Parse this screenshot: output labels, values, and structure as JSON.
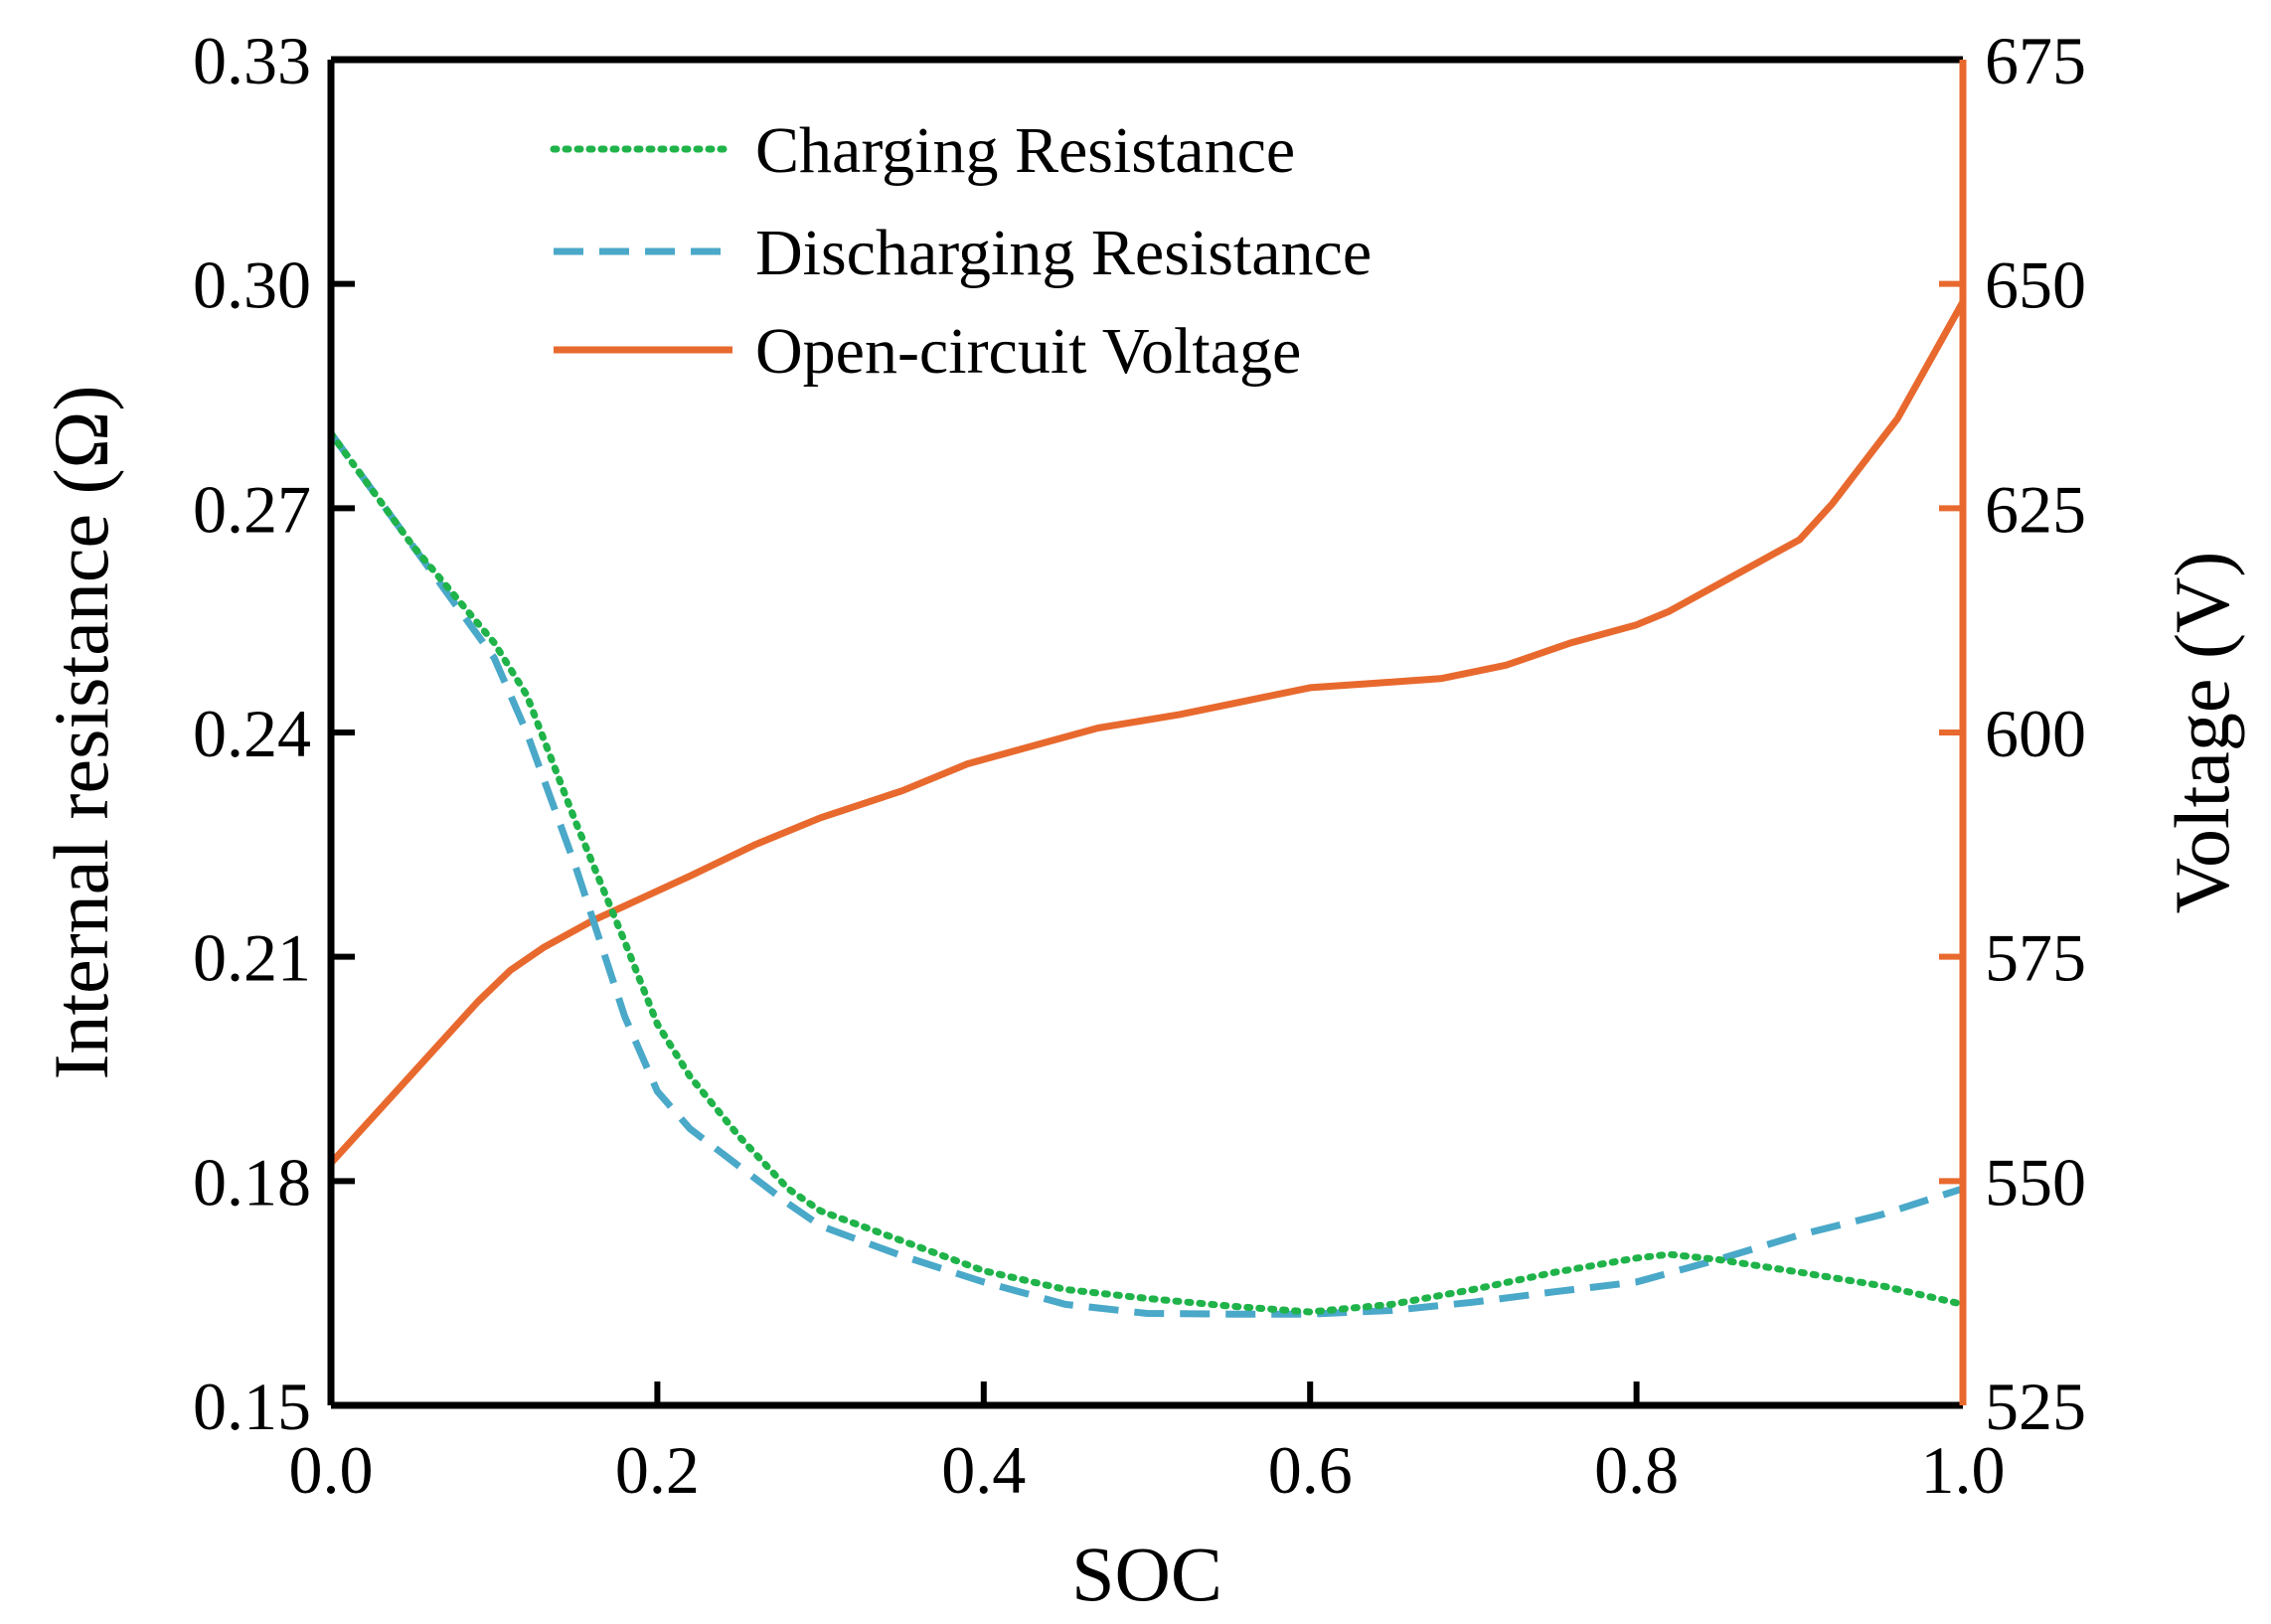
{
  "chart_data": {
    "type": "line",
    "title": "",
    "xlabel": "SOC",
    "ylabel": "Internal resistance (Ω)",
    "ylabel_right": "Voltage (V)",
    "xlim": [
      0.0,
      1.0
    ],
    "ylim": [
      0.15,
      0.33
    ],
    "ylim_right": [
      525,
      675
    ],
    "x_ticks": [
      "0.0",
      "0.2",
      "0.4",
      "0.6",
      "0.8",
      "1.0"
    ],
    "y_ticks": [
      "0.15",
      "0.18",
      "0.21",
      "0.24",
      "0.27",
      "0.30",
      "0.33"
    ],
    "y_ticks_right": [
      "525",
      "550",
      "575",
      "600",
      "625",
      "650",
      "675"
    ],
    "grid": false,
    "legend_position": "top-center",
    "colors": {
      "charging": "#1fb34a",
      "discharging": "#4aa8c8",
      "voltage": "#e8692e",
      "axis": "#000000",
      "right_axis": "#e8692e"
    },
    "series": [
      {
        "name": "Charging Resistance",
        "axis": "left",
        "style": "dotted",
        "x": [
          0.0,
          0.05,
          0.1,
          0.12,
          0.15,
          0.18,
          0.2,
          0.22,
          0.25,
          0.28,
          0.3,
          0.35,
          0.4,
          0.45,
          0.5,
          0.55,
          0.6,
          0.65,
          0.7,
          0.75,
          0.8,
          0.82,
          0.85,
          0.9,
          0.95,
          1.0
        ],
        "values": [
          0.28,
          0.265,
          0.252,
          0.245,
          0.228,
          0.212,
          0.201,
          0.194,
          0.186,
          0.179,
          0.176,
          0.172,
          0.168,
          0.1655,
          0.1643,
          0.1633,
          0.1625,
          0.1635,
          0.1655,
          0.1678,
          0.1697,
          0.1702,
          0.1695,
          0.1678,
          0.166,
          0.1635
        ]
      },
      {
        "name": "Discharging Resistance",
        "axis": "left",
        "style": "dashed",
        "x": [
          0.0,
          0.05,
          0.1,
          0.12,
          0.15,
          0.18,
          0.2,
          0.22,
          0.25,
          0.28,
          0.3,
          0.35,
          0.4,
          0.45,
          0.5,
          0.55,
          0.6,
          0.65,
          0.7,
          0.75,
          0.8,
          0.85,
          0.9,
          0.95,
          1.0
        ],
        "values": [
          0.28,
          0.265,
          0.25,
          0.24,
          0.222,
          0.202,
          0.192,
          0.187,
          0.182,
          0.177,
          0.174,
          0.17,
          0.1665,
          0.1635,
          0.1623,
          0.1622,
          0.1622,
          0.1627,
          0.1638,
          0.1652,
          0.1665,
          0.1695,
          0.1728,
          0.1755,
          0.179
        ]
      },
      {
        "name": "Open-circuit Voltage",
        "axis": "right",
        "style": "solid",
        "x": [
          0.0,
          0.03,
          0.06,
          0.09,
          0.11,
          0.13,
          0.16,
          0.19,
          0.22,
          0.26,
          0.3,
          0.35,
          0.39,
          0.43,
          0.47,
          0.52,
          0.56,
          0.6,
          0.64,
          0.68,
          0.72,
          0.76,
          0.8,
          0.82,
          0.86,
          0.9,
          0.92,
          0.96,
          1.0
        ],
        "values": [
          552.0,
          558.0,
          564.0,
          570.0,
          573.5,
          576.0,
          579.0,
          581.5,
          584.0,
          587.5,
          590.5,
          593.5,
          596.5,
          598.5,
          600.5,
          602.0,
          603.5,
          605.0,
          605.5,
          606.0,
          607.5,
          610.0,
          612.0,
          613.5,
          617.5,
          621.5,
          625.5,
          635.0,
          648.0
        ]
      }
    ]
  }
}
